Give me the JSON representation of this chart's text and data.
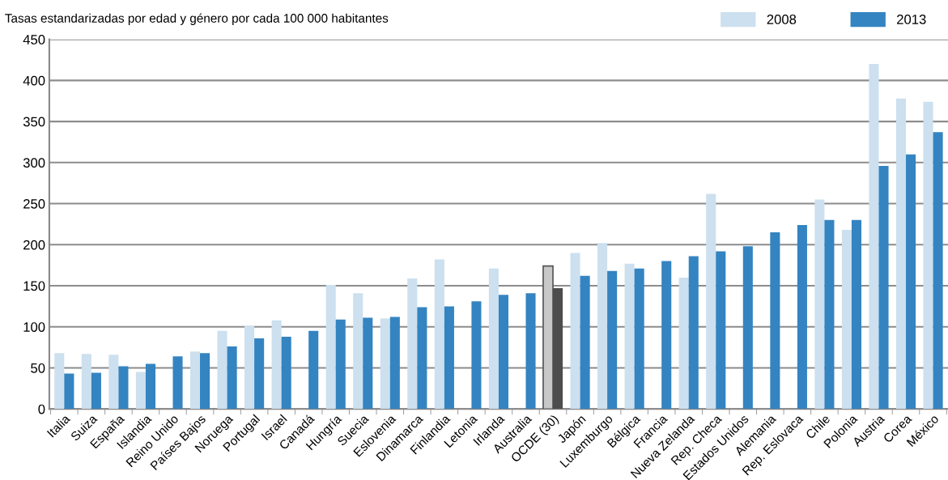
{
  "chart_data": {
    "type": "bar",
    "title": "Tasas estandarizadas por edad y género por cada 100 000 habitantes",
    "categories": [
      "Italia",
      "Suiza",
      "España",
      "Islandia",
      "Reino Unido",
      "Países Bajos",
      "Noruega",
      "Portugal",
      "Israel",
      "Canadá",
      "Hungría",
      "Suecia",
      "Eslovenia",
      "Dinamarca",
      "Finlandia",
      "Letonia",
      "Irlanda",
      "Australia",
      "OCDE (30)",
      "Japón",
      "Luxemburgo",
      "Bélgica",
      "Francia",
      "Nueva Zelanda",
      "Rep. Checa",
      "Estados Unidos",
      "Alemania",
      "Rep. Eslovaca",
      "Chile",
      "Polonia",
      "Austria",
      "Corea",
      "México"
    ],
    "series": [
      {
        "name": "2008",
        "color": "#cce0ef",
        "colors": [
          "#cce0ef",
          "#cce0ef",
          "#cce0ef",
          "#cce0ef",
          "#cce0ef",
          "#cce0ef",
          "#cce0ef",
          "#cce0ef",
          "#cce0ef",
          "#cce0ef",
          "#cce0ef",
          "#cce0ef",
          "#cce0ef",
          "#cce0ef",
          "#cce0ef",
          "#cce0ef",
          "#cce0ef",
          "#cce0ef",
          "#c8c8c8",
          "#cce0ef",
          "#cce0ef",
          "#cce0ef",
          "#cce0ef",
          "#cce0ef",
          "#cce0ef",
          "#cce0ef",
          "#cce0ef",
          "#cce0ef",
          "#cce0ef",
          "#cce0ef",
          "#cce0ef",
          "#cce0ef",
          "#cce0ef"
        ],
        "values": [
          68,
          67,
          66,
          45,
          null,
          70,
          95,
          101,
          108,
          null,
          151,
          141,
          110,
          159,
          182,
          null,
          171,
          null,
          174,
          190,
          202,
          177,
          null,
          160,
          262,
          null,
          null,
          null,
          255,
          218,
          420,
          378,
          374
        ]
      },
      {
        "name": "2013",
        "color": "#3484c1",
        "colors": [
          "#3484c1",
          "#3484c1",
          "#3484c1",
          "#3484c1",
          "#3484c1",
          "#3484c1",
          "#3484c1",
          "#3484c1",
          "#3484c1",
          "#3484c1",
          "#3484c1",
          "#3484c1",
          "#3484c1",
          "#3484c1",
          "#3484c1",
          "#3484c1",
          "#3484c1",
          "#3484c1",
          "#4d4d4d",
          "#3484c1",
          "#3484c1",
          "#3484c1",
          "#3484c1",
          "#3484c1",
          "#3484c1",
          "#3484c1",
          "#3484c1",
          "#3484c1",
          "#3484c1",
          "#3484c1",
          "#3484c1",
          "#3484c1",
          "#3484c1"
        ],
        "values": [
          43,
          44,
          52,
          55,
          64,
          68,
          76,
          86,
          88,
          95,
          109,
          111,
          112,
          124,
          125,
          131,
          139,
          141,
          147,
          162,
          168,
          171,
          180,
          186,
          192,
          198,
          215,
          224,
          230,
          230,
          296,
          310,
          337
        ]
      }
    ],
    "ylim": [
      0,
      450
    ],
    "yticks": [
      0,
      50,
      100,
      150,
      200,
      250,
      300,
      350,
      400,
      450
    ],
    "grid": "y",
    "legend": "top right"
  }
}
